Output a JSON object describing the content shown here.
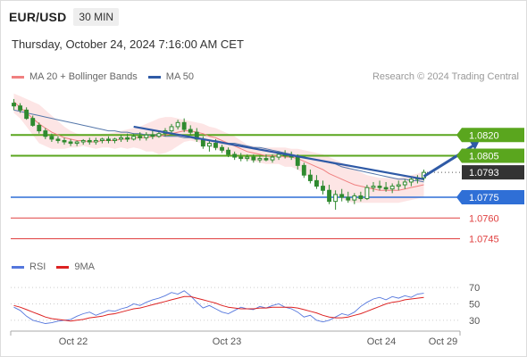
{
  "header": {
    "symbol": "EUR/USD",
    "interval": "30 MIN",
    "datetime": "Thursday, October 24, 2024 7:16:00 AM CET"
  },
  "legend": {
    "ma20_label": "MA 20 + Bollinger Bands",
    "ma50_label": "MA 50",
    "credit": "Research © 2024 Trading Central"
  },
  "rsi_legend": {
    "rsi_label": "RSI",
    "ma9_label": "9MA"
  },
  "colors": {
    "ma20": "#f08080",
    "bollinger_fill": "#fde0e0",
    "ma50": "#5577aa",
    "candle": "#2f8a2f",
    "resistance": "#5aa61e",
    "pivot": "#2f6fd6",
    "support": "#e04040",
    "last_price": "#333333",
    "trendline": "#2f5aa6",
    "rsi": "#5577dd",
    "rsi_ma": "#dd2222"
  },
  "chart_data": [
    {
      "type": "candlestick",
      "x_tick_labels": [
        "Oct 22",
        "Oct 23",
        "Oct 24",
        "Oct 29"
      ],
      "ylim": [
        1.0735,
        1.0855
      ],
      "candles": [
        [
          1.0843,
          1.0846,
          1.0838,
          1.0841
        ],
        [
          1.0841,
          1.0843,
          1.0836,
          1.0838
        ],
        [
          1.0838,
          1.084,
          1.0831,
          1.0832
        ],
        [
          1.0832,
          1.0834,
          1.0826,
          1.0827
        ],
        [
          1.0827,
          1.0829,
          1.0821,
          1.0823
        ],
        [
          1.0823,
          1.0825,
          1.0817,
          1.0819
        ],
        [
          1.0819,
          1.0821,
          1.0815,
          1.0817
        ],
        [
          1.0817,
          1.0819,
          1.0814,
          1.0816
        ],
        [
          1.0816,
          1.0818,
          1.0813,
          1.0815
        ],
        [
          1.0815,
          1.0817,
          1.0812,
          1.0814
        ],
        [
          1.0814,
          1.0816,
          1.0812,
          1.0815
        ],
        [
          1.0815,
          1.0817,
          1.0813,
          1.0816
        ],
        [
          1.0816,
          1.0818,
          1.0813,
          1.0815
        ],
        [
          1.0815,
          1.0818,
          1.0813,
          1.0816
        ],
        [
          1.0816,
          1.0818,
          1.0814,
          1.0817
        ],
        [
          1.0817,
          1.0819,
          1.0814,
          1.0816
        ],
        [
          1.0816,
          1.0818,
          1.0814,
          1.0817
        ],
        [
          1.0817,
          1.082,
          1.0815,
          1.0818
        ],
        [
          1.0818,
          1.0821,
          1.0815,
          1.0817
        ],
        [
          1.0817,
          1.0821,
          1.0816,
          1.0819
        ],
        [
          1.0819,
          1.0822,
          1.0816,
          1.0818
        ],
        [
          1.0818,
          1.0822,
          1.0816,
          1.082
        ],
        [
          1.082,
          1.0823,
          1.0817,
          1.0819
        ],
        [
          1.0819,
          1.0823,
          1.0818,
          1.0821
        ],
        [
          1.0821,
          1.0825,
          1.0819,
          1.0823
        ],
        [
          1.0823,
          1.0828,
          1.0821,
          1.0826
        ],
        [
          1.0826,
          1.0831,
          1.0824,
          1.0829
        ],
        [
          1.0829,
          1.0832,
          1.0822,
          1.0824
        ],
        [
          1.0824,
          1.0827,
          1.082,
          1.0822
        ],
        [
          1.0822,
          1.0825,
          1.0815,
          1.0817
        ],
        [
          1.0817,
          1.0819,
          1.081,
          1.0812
        ],
        [
          1.0812,
          1.0816,
          1.0808,
          1.0814
        ],
        [
          1.0814,
          1.0817,
          1.0809,
          1.0811
        ],
        [
          1.0811,
          1.0813,
          1.0807,
          1.0809
        ],
        [
          1.0809,
          1.0811,
          1.0804,
          1.0806
        ],
        [
          1.0806,
          1.0808,
          1.0802,
          1.0804
        ],
        [
          1.0804,
          1.0807,
          1.0801,
          1.0803
        ],
        [
          1.0803,
          1.0806,
          1.0801,
          1.0804
        ],
        [
          1.0804,
          1.0806,
          1.08,
          1.0802
        ],
        [
          1.0802,
          1.0805,
          1.08,
          1.0803
        ],
        [
          1.0803,
          1.0806,
          1.0801,
          1.0802
        ],
        [
          1.0802,
          1.0806,
          1.08,
          1.0804
        ],
        [
          1.0804,
          1.0808,
          1.0802,
          1.0806
        ],
        [
          1.0806,
          1.0809,
          1.0803,
          1.0805
        ],
        [
          1.0805,
          1.0808,
          1.0802,
          1.0804
        ],
        [
          1.0804,
          1.0806,
          1.0795,
          1.0798
        ],
        [
          1.0798,
          1.08,
          1.0789,
          1.0791
        ],
        [
          1.0791,
          1.0795,
          1.0785,
          1.0787
        ],
        [
          1.0787,
          1.0791,
          1.0781,
          1.0783
        ],
        [
          1.0783,
          1.0787,
          1.0777,
          1.078
        ],
        [
          1.078,
          1.0784,
          1.077,
          1.0772
        ],
        [
          1.0772,
          1.078,
          1.0766,
          1.0777
        ],
        [
          1.0777,
          1.0781,
          1.0772,
          1.0775
        ],
        [
          1.0775,
          1.0779,
          1.0771,
          1.0773
        ],
        [
          1.0773,
          1.0778,
          1.077,
          1.0776
        ],
        [
          1.0776,
          1.0779,
          1.0772,
          1.0774
        ],
        [
          1.0774,
          1.0784,
          1.0773,
          1.0782
        ],
        [
          1.0782,
          1.0786,
          1.0779,
          1.0783
        ],
        [
          1.0783,
          1.0787,
          1.078,
          1.0782
        ],
        [
          1.0782,
          1.0786,
          1.0779,
          1.0781
        ],
        [
          1.0781,
          1.0785,
          1.0778,
          1.0783
        ],
        [
          1.0783,
          1.0787,
          1.078,
          1.0784
        ],
        [
          1.0784,
          1.0788,
          1.0781,
          1.0786
        ],
        [
          1.0786,
          1.079,
          1.0783,
          1.0788
        ],
        [
          1.0788,
          1.0791,
          1.0785,
          1.0789
        ],
        [
          1.0789,
          1.0795,
          1.0787,
          1.0793
        ]
      ],
      "ma20": [
        1.0844,
        1.084,
        1.0836,
        1.0832,
        1.0828,
        1.0825,
        1.0822,
        1.082,
        1.0818,
        1.0817,
        1.0816,
        1.0816,
        1.0815,
        1.0815,
        1.0816,
        1.0816,
        1.0816,
        1.0817,
        1.0817,
        1.0818,
        1.0818,
        1.0818,
        1.0819,
        1.0819,
        1.082,
        1.0821,
        1.0822,
        1.0823,
        1.0823,
        1.0822,
        1.0821,
        1.0819,
        1.0818,
        1.0816,
        1.0814,
        1.0812,
        1.081,
        1.0808,
        1.0807,
        1.0806,
        1.0805,
        1.0805,
        1.0805,
        1.0804,
        1.0804,
        1.0803,
        1.0801,
        1.0799,
        1.0797,
        1.0795,
        1.0792,
        1.079,
        1.0788,
        1.0786,
        1.0784,
        1.0783,
        1.0782,
        1.0781,
        1.078,
        1.078,
        1.078,
        1.078,
        1.0781,
        1.0782,
        1.0783,
        1.0784
      ],
      "bb_upper": [
        1.085,
        1.0848,
        1.0846,
        1.0844,
        1.0842,
        1.0838,
        1.0834,
        1.083,
        1.0826,
        1.0823,
        1.0821,
        1.082,
        1.082,
        1.082,
        1.0821,
        1.0821,
        1.0822,
        1.0823,
        1.0824,
        1.0825,
        1.0826,
        1.0828,
        1.083,
        1.0832,
        1.0833,
        1.0833,
        1.0832,
        1.0831,
        1.083,
        1.0829,
        1.0828,
        1.0826,
        1.0825,
        1.0823,
        1.0821,
        1.0819,
        1.0816,
        1.0813,
        1.0812,
        1.0811,
        1.0811,
        1.0811,
        1.0811,
        1.0811,
        1.081,
        1.081,
        1.0809,
        1.0808,
        1.0807,
        1.0806,
        1.0804,
        1.0802,
        1.08,
        1.0797,
        1.0795,
        1.0793,
        1.0791,
        1.079,
        1.0789,
        1.0789,
        1.0789,
        1.0789,
        1.079,
        1.0791,
        1.0792,
        1.0794
      ],
      "bb_lower": [
        1.0836,
        1.0832,
        1.0826,
        1.082,
        1.0814,
        1.0812,
        1.081,
        1.081,
        1.081,
        1.0811,
        1.0811,
        1.0812,
        1.0811,
        1.081,
        1.0811,
        1.0811,
        1.081,
        1.0811,
        1.081,
        1.0811,
        1.081,
        1.0808,
        1.0808,
        1.0806,
        1.0807,
        1.0809,
        1.0812,
        1.0815,
        1.0816,
        1.0815,
        1.0814,
        1.0812,
        1.081,
        1.0808,
        1.0806,
        1.0804,
        1.0803,
        1.0802,
        1.0801,
        1.08,
        1.0799,
        1.0799,
        1.0799,
        1.0797,
        1.0797,
        1.0795,
        1.0792,
        1.0789,
        1.0786,
        1.0783,
        1.0779,
        1.0776,
        1.0774,
        1.0772,
        1.0771,
        1.0771,
        1.0771,
        1.0771,
        1.0771,
        1.0771,
        1.0771,
        1.0771,
        1.0772,
        1.0773,
        1.0774,
        1.0775
      ],
      "ma50": [
        1.0838,
        1.0837,
        1.0836,
        1.0835,
        1.0834,
        1.0833,
        1.0832,
        1.0831,
        1.083,
        1.0829,
        1.0828,
        1.0827,
        1.0826,
        1.0825,
        1.0824,
        1.0823,
        1.0823,
        1.0822,
        1.0822,
        1.0821,
        1.0821,
        1.082,
        1.082,
        1.082,
        1.0819,
        1.0819,
        1.0819,
        1.0818,
        1.0818,
        1.0817,
        1.0817,
        1.0816,
        1.0816,
        1.0815,
        1.0814,
        1.0814,
        1.0813,
        1.0812,
        1.0811,
        1.0811,
        1.081,
        1.0809,
        1.0808,
        1.0807,
        1.0806,
        1.0805,
        1.0804,
        1.0803,
        1.0802,
        1.0801,
        1.08,
        1.0799,
        1.0797,
        1.0796,
        1.0795,
        1.0794,
        1.0793,
        1.0792,
        1.0791,
        1.079,
        1.0789,
        1.0788,
        1.0788,
        1.0787,
        1.0787,
        1.0786
      ],
      "trendline": [
        [
          19,
          1.0826
        ],
        [
          65,
          1.0788
        ]
      ],
      "forecast_arrow": [
        [
          65,
          1.079
        ],
        [
          73,
          1.082
        ]
      ],
      "levels": [
        {
          "value": 1.082,
          "label": "1.0820",
          "kind": "resistance"
        },
        {
          "value": 1.0805,
          "label": "1.0805",
          "kind": "resistance"
        },
        {
          "value": 1.0793,
          "label": "1.0793",
          "kind": "last"
        },
        {
          "value": 1.0775,
          "label": "1.0775",
          "kind": "pivot"
        },
        {
          "value": 1.076,
          "label": "1.0760",
          "kind": "support"
        },
        {
          "value": 1.0745,
          "label": "1.0745",
          "kind": "support"
        }
      ]
    },
    {
      "type": "line",
      "name": "RSI",
      "ylim": [
        20,
        80
      ],
      "y_tick_labels": [
        "70",
        "50",
        "30"
      ],
      "y_ticks": [
        70,
        50,
        30
      ],
      "rsi": [
        46,
        42,
        35,
        30,
        28,
        26,
        27,
        29,
        30,
        31,
        35,
        38,
        40,
        36,
        39,
        42,
        41,
        44,
        46,
        50,
        48,
        52,
        55,
        57,
        60,
        64,
        62,
        66,
        60,
        52,
        45,
        48,
        44,
        40,
        38,
        42,
        46,
        44,
        43,
        47,
        45,
        48,
        50,
        46,
        44,
        40,
        34,
        36,
        30,
        28,
        30,
        34,
        38,
        36,
        40,
        47,
        52,
        56,
        58,
        55,
        59,
        57,
        60,
        58,
        62,
        63
      ],
      "rsi_ma": [
        48,
        46,
        43,
        40,
        37,
        34,
        32,
        31,
        30,
        29,
        30,
        31,
        33,
        34,
        35,
        37,
        38,
        40,
        42,
        44,
        45,
        47,
        49,
        51,
        53,
        55,
        57,
        59,
        59,
        57,
        55,
        53,
        51,
        48,
        46,
        45,
        44,
        44,
        44,
        45,
        45,
        46,
        46,
        46,
        46,
        45,
        43,
        41,
        39,
        36,
        34,
        33,
        33,
        34,
        36,
        38,
        41,
        44,
        47,
        50,
        52,
        53,
        55,
        56,
        57,
        58
      ]
    }
  ]
}
